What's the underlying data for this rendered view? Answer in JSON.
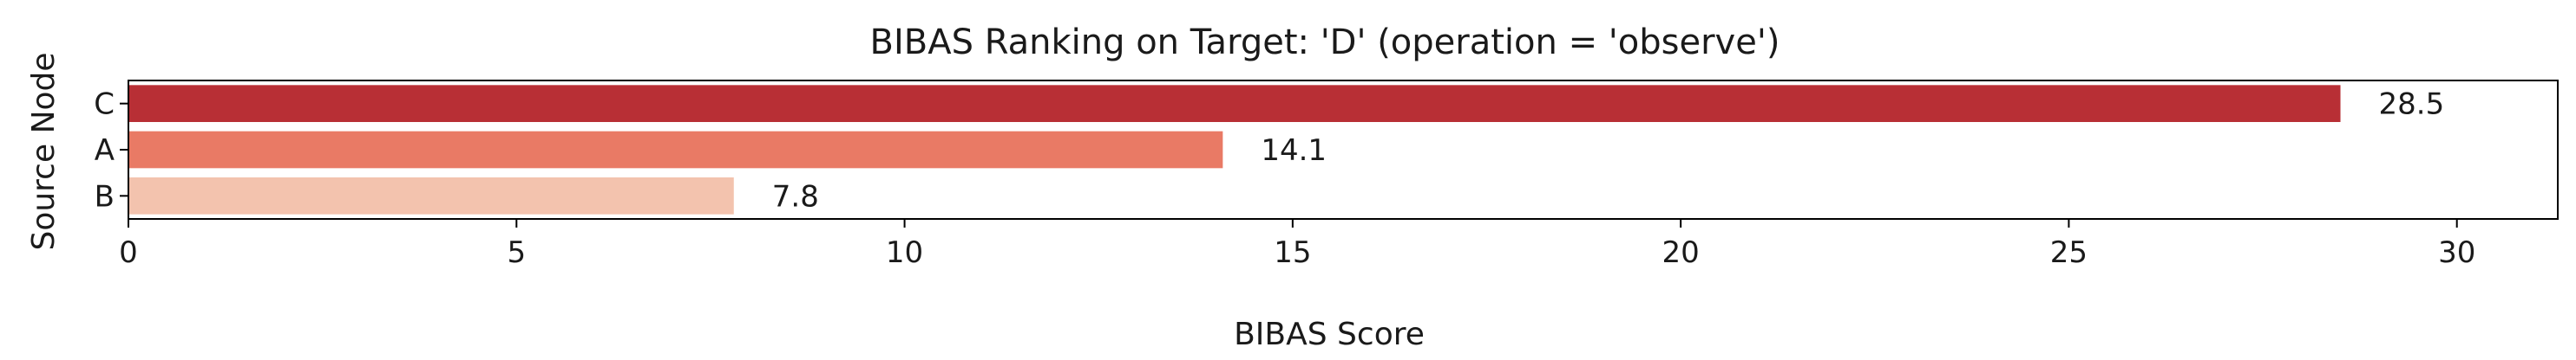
{
  "chart_data": {
    "type": "bar",
    "orientation": "horizontal",
    "title": "BIBAS Ranking on Target: 'D' (operation = 'observe')",
    "xlabel": "BIBAS Score",
    "ylabel": "Source Node",
    "categories": [
      "C",
      "A",
      "B"
    ],
    "values": [
      28.5,
      14.1,
      7.8
    ],
    "data_labels": [
      "28.5",
      "14.1",
      "7.8"
    ],
    "colors": [
      "#b82f35",
      "#e97a65",
      "#f3c3ae"
    ],
    "xlim": [
      0,
      31.3
    ],
    "xticks": [
      0,
      5,
      10,
      15,
      20,
      25,
      30
    ],
    "xtick_labels": [
      "0",
      "5",
      "10",
      "15",
      "20",
      "25",
      "30"
    ],
    "grid": false,
    "legend": "none"
  }
}
